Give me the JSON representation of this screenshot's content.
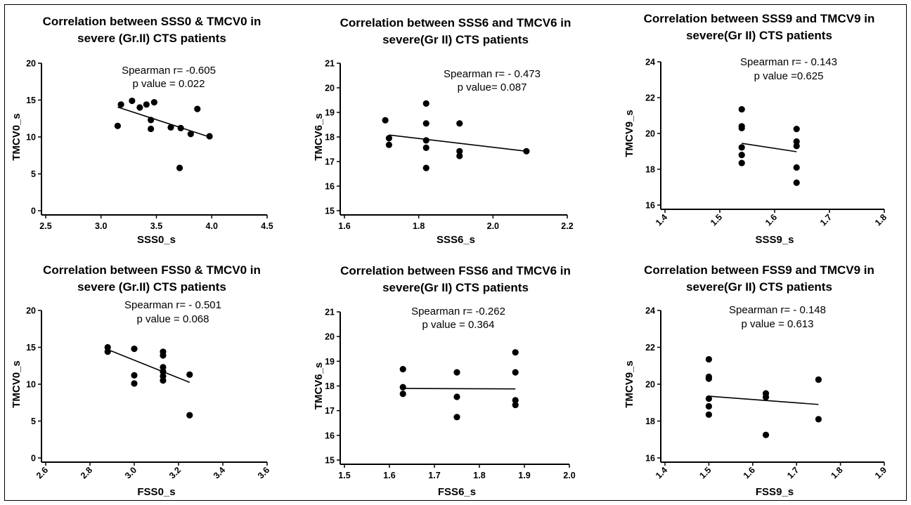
{
  "chart_data": [
    {
      "type": "scatter",
      "title": [
        "Correlation between SSS0 & TMCV0 in",
        "severe (Gr.II) CTS patients"
      ],
      "xlabel": "SSS0_s",
      "ylabel": "TMCV0_s",
      "xlim": [
        2.5,
        4.5
      ],
      "ylim": [
        0,
        20
      ],
      "x_ticks": [
        "2.5",
        "3.0",
        "3.5",
        "4.0",
        "4.5"
      ],
      "y_ticks": [
        "0",
        "5",
        "10",
        "15",
        "20"
      ],
      "x_tick_rotated": false,
      "annotation": [
        "Spearman r= -0.605",
        "p value = 0.022"
      ],
      "points": [
        [
          3.15,
          11.5
        ],
        [
          3.18,
          14.4
        ],
        [
          3.28,
          14.9
        ],
        [
          3.35,
          14.0
        ],
        [
          3.41,
          14.4
        ],
        [
          3.45,
          12.3
        ],
        [
          3.45,
          11.1
        ],
        [
          3.48,
          14.7
        ],
        [
          3.63,
          11.3
        ],
        [
          3.71,
          5.8
        ],
        [
          3.72,
          11.2
        ],
        [
          3.81,
          10.4
        ],
        [
          3.87,
          13.8
        ],
        [
          3.98,
          10.1
        ]
      ],
      "fit_line": [
        [
          3.15,
          14.05
        ],
        [
          3.98,
          10.0
        ]
      ]
    },
    {
      "type": "scatter",
      "title": [
        "Correlation between SSS6  and TMCV6  in",
        "severe(Gr II) CTS patients"
      ],
      "xlabel": "SSS6_s",
      "ylabel": "TMCV6_s",
      "xlim": [
        1.6,
        2.2
      ],
      "ylim": [
        15,
        21
      ],
      "x_ticks": [
        "1.6",
        "1.8",
        "2.0",
        "2.2"
      ],
      "y_ticks": [
        "15",
        "16",
        "17",
        "18",
        "19",
        "20",
        "21"
      ],
      "x_tick_rotated": false,
      "annotation": [
        "Spearman r= - 0.473",
        "p value= 0.087"
      ],
      "points": [
        [
          1.71,
          18.68
        ],
        [
          1.72,
          17.95
        ],
        [
          1.72,
          17.68
        ],
        [
          1.82,
          19.36
        ],
        [
          1.82,
          18.55
        ],
        [
          1.82,
          17.86
        ],
        [
          1.82,
          17.56
        ],
        [
          1.82,
          16.74
        ],
        [
          1.91,
          18.55
        ],
        [
          1.91,
          17.42
        ],
        [
          1.91,
          17.23
        ],
        [
          2.09,
          17.42
        ]
      ],
      "fit_line": [
        [
          1.72,
          18.08
        ],
        [
          2.09,
          17.42
        ]
      ]
    },
    {
      "type": "scatter",
      "title": [
        "Correlation between SSS9 and TMCV9  in",
        "severe(Gr II) CTS patients"
      ],
      "xlabel": "SSS9_s",
      "ylabel": "TMCV9_s",
      "xlim": [
        1.4,
        1.8
      ],
      "ylim": [
        16,
        24
      ],
      "x_ticks": [
        "1.4",
        "1.5",
        "1.6",
        "1.7",
        "1.8"
      ],
      "y_ticks": [
        "16",
        "18",
        "20",
        "22",
        "24"
      ],
      "x_tick_rotated": true,
      "annotation": [
        "Spearman r= - 0.143",
        "p value =0.625"
      ],
      "points": [
        [
          1.54,
          21.35
        ],
        [
          1.54,
          20.4
        ],
        [
          1.54,
          20.3
        ],
        [
          1.54,
          19.22
        ],
        [
          1.54,
          18.8
        ],
        [
          1.54,
          18.35
        ],
        [
          1.64,
          20.25
        ],
        [
          1.64,
          19.55
        ],
        [
          1.64,
          19.3
        ],
        [
          1.64,
          18.1
        ],
        [
          1.64,
          17.25
        ]
      ],
      "fit_line": [
        [
          1.54,
          19.45
        ],
        [
          1.64,
          18.98
        ]
      ]
    },
    {
      "type": "scatter",
      "title": [
        "Correlation between FSS0 & TMCV0 in",
        "severe (Gr.II) CTS patients"
      ],
      "xlabel": "FSS0_s",
      "ylabel": "TMCV0_s",
      "xlim": [
        2.6,
        3.6
      ],
      "ylim": [
        0,
        20
      ],
      "x_ticks": [
        "2.6",
        "2.8",
        "3.0",
        "3.2",
        "3.4",
        "3.6"
      ],
      "y_ticks": [
        "0",
        "5",
        "10",
        "15",
        "20"
      ],
      "x_tick_rotated": true,
      "annotation": [
        "Spearman r= - 0.501",
        "p value = 0.068"
      ],
      "points": [
        [
          2.88,
          15.0
        ],
        [
          2.88,
          14.4
        ],
        [
          3.0,
          14.8
        ],
        [
          3.0,
          11.2
        ],
        [
          3.0,
          10.1
        ],
        [
          3.13,
          14.4
        ],
        [
          3.13,
          13.9
        ],
        [
          3.13,
          12.3
        ],
        [
          3.13,
          11.7
        ],
        [
          3.13,
          11.1
        ],
        [
          3.13,
          10.5
        ],
        [
          3.25,
          11.3
        ],
        [
          3.25,
          5.8
        ]
      ],
      "fit_line": [
        [
          2.88,
          14.7
        ],
        [
          3.25,
          10.25
        ]
      ]
    },
    {
      "type": "scatter",
      "title": [
        "Correlation between FSS6  and TMCV6  in",
        "severe(Gr II) CTS patients"
      ],
      "xlabel": "FSS6_s",
      "ylabel": "TMCV6_s",
      "xlim": [
        1.5,
        2.0
      ],
      "ylim": [
        15,
        21
      ],
      "x_ticks": [
        "1.5",
        "1.6",
        "1.7",
        "1.8",
        "1.9",
        "2.0"
      ],
      "y_ticks": [
        "15",
        "16",
        "17",
        "18",
        "19",
        "20",
        "21"
      ],
      "x_tick_rotated": false,
      "annotation": [
        "Spearman r= -0.262",
        "p value = 0.364"
      ],
      "points": [
        [
          1.63,
          18.68
        ],
        [
          1.63,
          17.95
        ],
        [
          1.63,
          17.68
        ],
        [
          1.75,
          18.55
        ],
        [
          1.75,
          17.56
        ],
        [
          1.75,
          16.74
        ],
        [
          1.88,
          19.36
        ],
        [
          1.88,
          18.55
        ],
        [
          1.88,
          17.42
        ],
        [
          1.88,
          17.23
        ]
      ],
      "fit_line": [
        [
          1.63,
          17.9
        ],
        [
          1.88,
          17.88
        ]
      ]
    },
    {
      "type": "scatter",
      "title": [
        "Correlation between FSS9 and TMCV9  in",
        "severe(Gr II) CTS patients"
      ],
      "xlabel": "FSS9_s",
      "ylabel": "TMCV9_s",
      "xlim": [
        1.4,
        1.9
      ],
      "ylim": [
        16,
        24
      ],
      "x_ticks": [
        "1.4",
        "1.5",
        "1.6",
        "1.7",
        "1.8",
        "1.9"
      ],
      "y_ticks": [
        "16",
        "18",
        "20",
        "22",
        "24"
      ],
      "x_tick_rotated": true,
      "annotation": [
        "Spearman r= - 0.148",
        "p value = 0.613"
      ],
      "points": [
        [
          1.5,
          21.35
        ],
        [
          1.5,
          20.4
        ],
        [
          1.5,
          20.3
        ],
        [
          1.5,
          19.22
        ],
        [
          1.5,
          18.8
        ],
        [
          1.5,
          18.35
        ],
        [
          1.63,
          19.5
        ],
        [
          1.63,
          19.3
        ],
        [
          1.63,
          17.25
        ],
        [
          1.75,
          20.25
        ],
        [
          1.75,
          18.1
        ]
      ],
      "fit_line": [
        [
          1.5,
          19.35
        ],
        [
          1.75,
          18.9
        ]
      ]
    }
  ]
}
